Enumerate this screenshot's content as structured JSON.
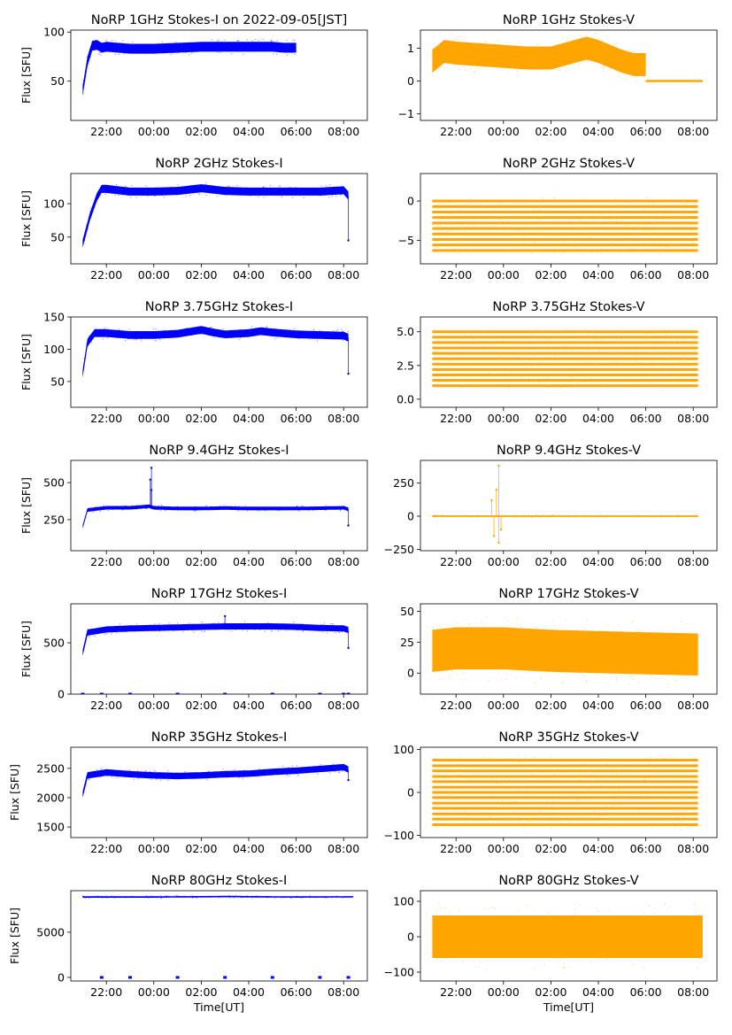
{
  "figure": {
    "xlabel": "Time[UT]",
    "ylabel": "Flux [SFU]",
    "x_ticks": [
      "22:00",
      "00:00",
      "02:00",
      "04:00",
      "06:00",
      "08:00"
    ],
    "stokes_i_color": "#0000ff",
    "stokes_v_color": "#ffa500"
  },
  "chart_data": [
    {
      "type": "scatter",
      "title": "NoRP 1GHz Stokes-I on 2022-09-05[JST]",
      "xlabel": "",
      "ylabel": "Flux [SFU]",
      "color": "#0000ff",
      "xlim": [
        20.5,
        33.0
      ],
      "x_end": 30.0,
      "ylim": [
        10,
        102
      ],
      "yticks": [
        50,
        100
      ],
      "points": [
        [
          21.0,
          40
        ],
        [
          21.2,
          70
        ],
        [
          21.4,
          86
        ],
        [
          21.6,
          87
        ],
        [
          21.8,
          84
        ],
        [
          22.0,
          85
        ],
        [
          22.5,
          84
        ],
        [
          23.0,
          83
        ],
        [
          24.0,
          83
        ],
        [
          25.0,
          84
        ],
        [
          26.0,
          85
        ],
        [
          27.0,
          85
        ],
        [
          28.0,
          85
        ],
        [
          29.0,
          85
        ],
        [
          29.5,
          84
        ],
        [
          30.0,
          84
        ]
      ],
      "band": 5,
      "outliers": []
    },
    {
      "type": "scatter",
      "title": "NoRP 1GHz Stokes-V",
      "xlabel": "",
      "ylabel": "",
      "color": "#ffa500",
      "xlim": [
        20.5,
        33.0
      ],
      "x_end": 30.0,
      "ylim": [
        -1.2,
        1.55
      ],
      "yticks": [
        -1,
        0,
        1
      ],
      "points": [
        [
          21.0,
          0.6
        ],
        [
          21.5,
          0.9
        ],
        [
          22.0,
          0.85
        ],
        [
          23.0,
          0.8
        ],
        [
          24.0,
          0.75
        ],
        [
          25.0,
          0.7
        ],
        [
          26.0,
          0.7
        ],
        [
          27.0,
          0.9
        ],
        [
          27.5,
          1.0
        ],
        [
          28.0,
          0.9
        ],
        [
          29.0,
          0.6
        ],
        [
          29.5,
          0.5
        ],
        [
          30.0,
          0.5
        ]
      ],
      "band": 0.35,
      "flat": {
        "y": 0,
        "from": 30.0,
        "to": 32.4
      },
      "outliers": []
    },
    {
      "type": "scatter",
      "title": "NoRP 2GHz Stokes-I",
      "xlabel": "",
      "ylabel": "Flux [SFU]",
      "color": "#0000ff",
      "xlim": [
        20.5,
        33.0
      ],
      "x_end": 32.2,
      "ylim": [
        10,
        145
      ],
      "yticks": [
        50,
        100
      ],
      "points": [
        [
          21.0,
          40
        ],
        [
          21.3,
          80
        ],
        [
          21.6,
          110
        ],
        [
          21.8,
          122
        ],
        [
          22.0,
          122
        ],
        [
          23.0,
          118
        ],
        [
          24.0,
          118
        ],
        [
          25.0,
          119
        ],
        [
          26.0,
          123
        ],
        [
          27.0,
          119
        ],
        [
          28.0,
          118
        ],
        [
          29.0,
          118
        ],
        [
          30.0,
          118
        ],
        [
          31.0,
          118
        ],
        [
          32.0,
          120
        ],
        [
          32.2,
          112
        ]
      ],
      "band": 6,
      "outliers": [
        [
          32.2,
          45
        ]
      ]
    },
    {
      "type": "scatter",
      "title": "NoRP 2GHz Stokes-V",
      "xlabel": "",
      "ylabel": "",
      "color": "#ffa500",
      "xlim": [
        20.5,
        33.0
      ],
      "x_end": 32.2,
      "ylim": [
        -8.0,
        3.5
      ],
      "yticks": [
        -5,
        0
      ],
      "levels": [
        0.0,
        -0.7,
        -1.4,
        -2.1,
        -2.8,
        -3.5,
        -4.2,
        -4.9,
        -5.6,
        -6.3
      ],
      "outliers": []
    },
    {
      "type": "scatter",
      "title": "NoRP 3.75GHz Stokes-I",
      "xlabel": "",
      "ylabel": "Flux [SFU]",
      "color": "#0000ff",
      "xlim": [
        20.5,
        33.0
      ],
      "x_end": 32.2,
      "ylim": [
        10,
        150
      ],
      "yticks": [
        50,
        100,
        150
      ],
      "points": [
        [
          21.0,
          62
        ],
        [
          21.2,
          110
        ],
        [
          21.5,
          125
        ],
        [
          22.0,
          125
        ],
        [
          23.0,
          122
        ],
        [
          24.0,
          122
        ],
        [
          25.0,
          124
        ],
        [
          26.0,
          130
        ],
        [
          26.5,
          126
        ],
        [
          27.0,
          123
        ],
        [
          28.0,
          125
        ],
        [
          28.5,
          128
        ],
        [
          29.0,
          126
        ],
        [
          30.0,
          123
        ],
        [
          31.0,
          122
        ],
        [
          32.0,
          121
        ],
        [
          32.2,
          118
        ]
      ],
      "band": 6,
      "outliers": [
        [
          32.2,
          62
        ]
      ]
    },
    {
      "type": "scatter",
      "title": "NoRP 3.75GHz Stokes-V",
      "xlabel": "",
      "ylabel": "",
      "color": "#ffa500",
      "xlim": [
        20.5,
        33.0
      ],
      "x_end": 32.2,
      "ylim": [
        -0.6,
        6.1
      ],
      "yticks": [
        0.0,
        2.5,
        5.0
      ],
      "levels": [
        5.0,
        4.6,
        4.2,
        3.8,
        3.4,
        3.0,
        2.6,
        2.2,
        1.8,
        1.4,
        1.0
      ],
      "outliers": []
    },
    {
      "type": "scatter",
      "title": "NoRP 9.4GHz Stokes-I",
      "xlabel": "",
      "ylabel": "Flux [SFU]",
      "color": "#0000ff",
      "xlim": [
        20.5,
        33.0
      ],
      "x_end": 32.2,
      "ylim": [
        40,
        650
      ],
      "yticks": [
        250,
        500
      ],
      "points": [
        [
          21.0,
          200
        ],
        [
          21.2,
          315
        ],
        [
          22.0,
          330
        ],
        [
          23.0,
          330
        ],
        [
          23.8,
          340
        ],
        [
          24.0,
          330
        ],
        [
          25.0,
          325
        ],
        [
          26.0,
          325
        ],
        [
          27.0,
          328
        ],
        [
          28.0,
          325
        ],
        [
          29.0,
          325
        ],
        [
          30.0,
          325
        ],
        [
          31.0,
          327
        ],
        [
          32.0,
          330
        ],
        [
          32.2,
          320
        ]
      ],
      "band": 12,
      "outliers": [
        [
          23.9,
          600
        ],
        [
          23.85,
          520
        ],
        [
          23.9,
          450
        ],
        [
          32.2,
          210
        ]
      ]
    },
    {
      "type": "scatter",
      "title": "NoRP 9.4GHz Stokes-V",
      "xlabel": "",
      "ylabel": "",
      "color": "#ffa500",
      "xlim": [
        20.5,
        33.0
      ],
      "x_end": 32.2,
      "ylim": [
        -260,
        420
      ],
      "yticks": [
        -250,
        0,
        250
      ],
      "points": [
        [
          21.0,
          0
        ],
        [
          32.2,
          0
        ]
      ],
      "band": 6,
      "outliers": [
        [
          23.8,
          380
        ],
        [
          23.7,
          200
        ],
        [
          23.6,
          -150
        ],
        [
          23.8,
          -200
        ],
        [
          23.5,
          120
        ],
        [
          23.9,
          -100
        ]
      ]
    },
    {
      "type": "scatter",
      "title": "NoRP 17GHz Stokes-I",
      "xlabel": "",
      "ylabel": "Flux [SFU]",
      "color": "#0000ff",
      "xlim": [
        20.5,
        33.0
      ],
      "x_end": 32.2,
      "ylim": [
        0,
        880
      ],
      "yticks": [
        0,
        500
      ],
      "points": [
        [
          21.0,
          400
        ],
        [
          21.2,
          600
        ],
        [
          22.0,
          630
        ],
        [
          23.0,
          640
        ],
        [
          24.0,
          645
        ],
        [
          25.0,
          650
        ],
        [
          26.0,
          655
        ],
        [
          27.0,
          660
        ],
        [
          28.0,
          660
        ],
        [
          29.0,
          660
        ],
        [
          30.0,
          655
        ],
        [
          31.0,
          645
        ],
        [
          32.0,
          640
        ],
        [
          32.2,
          625
        ]
      ],
      "band": 30,
      "outliers": [
        [
          27.0,
          760
        ],
        [
          32.2,
          450
        ]
      ],
      "dropouts": [
        21.0,
        21.8,
        23.0,
        25.0,
        27.0,
        29.0,
        31.0,
        32.0,
        32.2
      ]
    },
    {
      "type": "scatter",
      "title": "NoRP 17GHz Stokes-V",
      "xlabel": "",
      "ylabel": "",
      "color": "#ffa500",
      "xlim": [
        20.5,
        33.0
      ],
      "x_end": 32.2,
      "ylim": [
        -17,
        56
      ],
      "yticks": [
        0,
        25,
        50
      ],
      "points": [
        [
          21.0,
          18
        ],
        [
          22.0,
          20
        ],
        [
          24.0,
          20
        ],
        [
          26.0,
          18
        ],
        [
          28.0,
          17
        ],
        [
          30.0,
          16
        ],
        [
          32.2,
          15
        ]
      ],
      "band": 17,
      "outliers": []
    },
    {
      "type": "scatter",
      "title": "NoRP 35GHz Stokes-I",
      "xlabel": "",
      "ylabel": "Flux [SFU]",
      "color": "#0000ff",
      "xlim": [
        20.5,
        33.0
      ],
      "x_end": 32.2,
      "ylim": [
        1320,
        2860
      ],
      "yticks": [
        1500,
        2000,
        2500
      ],
      "points": [
        [
          21.0,
          2050
        ],
        [
          21.2,
          2380
        ],
        [
          22.0,
          2430
        ],
        [
          23.0,
          2400
        ],
        [
          24.0,
          2380
        ],
        [
          25.0,
          2370
        ],
        [
          26.0,
          2380
        ],
        [
          27.0,
          2400
        ],
        [
          28.0,
          2410
        ],
        [
          29.0,
          2440
        ],
        [
          30.0,
          2460
        ],
        [
          31.0,
          2490
        ],
        [
          32.0,
          2520
        ],
        [
          32.2,
          2480
        ]
      ],
      "band": 55,
      "outliers": [
        [
          32.2,
          2300
        ]
      ]
    },
    {
      "type": "scatter",
      "title": "NoRP 35GHz Stokes-V",
      "xlabel": "",
      "ylabel": "",
      "color": "#ffa500",
      "xlim": [
        20.5,
        33.0
      ],
      "x_end": 32.2,
      "ylim": [
        -105,
        105
      ],
      "yticks": [
        -100,
        0,
        100
      ],
      "levels": [
        75,
        62,
        50,
        37,
        25,
        12,
        0,
        -12,
        -25,
        -37,
        -50,
        -62,
        -75
      ],
      "outliers": []
    },
    {
      "type": "scatter",
      "title": "NoRP 80GHz Stokes-I",
      "xlabel": "Time[UT]",
      "ylabel": "Flux [SFU]",
      "color": "#0000ff",
      "xlim": [
        20.5,
        33.0
      ],
      "x_end": 32.4,
      "ylim": [
        -400,
        9600
      ],
      "yticks": [
        0,
        5000
      ],
      "points": [
        [
          21.0,
          8900
        ],
        [
          24.0,
          8900
        ],
        [
          27.0,
          8950
        ],
        [
          30.0,
          8900
        ],
        [
          32.4,
          8920
        ]
      ],
      "band": 80,
      "outliers": [],
      "dropouts": [
        21.8,
        23.0,
        25.0,
        27.0,
        29.0,
        31.0,
        32.2
      ]
    },
    {
      "type": "scatter",
      "title": "NoRP 80GHz Stokes-V",
      "xlabel": "Time[UT]",
      "ylabel": "",
      "color": "#ffa500",
      "xlim": [
        20.5,
        33.0
      ],
      "x_end": 32.4,
      "ylim": [
        -125,
        130
      ],
      "yticks": [
        -100,
        0,
        100
      ],
      "points": [
        [
          21.0,
          0
        ],
        [
          32.4,
          0
        ]
      ],
      "band": 60,
      "outliers": []
    }
  ]
}
